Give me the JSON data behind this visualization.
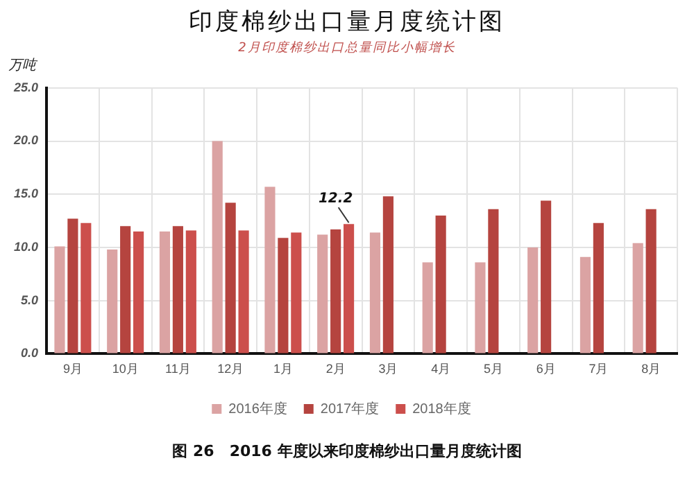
{
  "chart_data": {
    "type": "bar",
    "title": "印度棉纱出口量月度统计图",
    "subtitle": "2月印度棉纱出口总量同比小幅增长",
    "ylabel": "万吨",
    "categories": [
      "9月",
      "10月",
      "11月",
      "12月",
      "1月",
      "2月",
      "3月",
      "4月",
      "5月",
      "6月",
      "7月",
      "8月"
    ],
    "series": [
      {
        "name": "2016年度",
        "color": "#dba3a3",
        "values": [
          10.1,
          9.8,
          11.5,
          20.0,
          15.7,
          11.2,
          11.4,
          8.6,
          8.6,
          10.0,
          9.1,
          10.4
        ]
      },
      {
        "name": "2017年度",
        "color": "#b5443f",
        "values": [
          12.7,
          12.0,
          12.0,
          14.2,
          10.9,
          11.7,
          14.8,
          13.0,
          13.6,
          14.4,
          12.3,
          13.6
        ]
      },
      {
        "name": "2018年度",
        "color": "#cc4f4c",
        "values": [
          12.3,
          11.5,
          11.6,
          11.6,
          11.4,
          12.2,
          null,
          null,
          null,
          null,
          null,
          null
        ]
      }
    ],
    "ylim": [
      0,
      25
    ],
    "yticks": [
      {
        "value": 0,
        "label": "0.0"
      },
      {
        "value": 5,
        "label": "5.0"
      },
      {
        "value": 10,
        "label": "10.0"
      },
      {
        "value": 15,
        "label": "15.0"
      },
      {
        "value": 20,
        "label": "20.0"
      },
      {
        "value": 25,
        "label": "25.0"
      }
    ],
    "grid": true,
    "legend": "bottom",
    "annotations": [
      {
        "text": "12.2",
        "x": "2月",
        "y": 12.2
      },
      "图 26　2016 年度以来印度棉纱出口量月度统计图"
    ]
  }
}
